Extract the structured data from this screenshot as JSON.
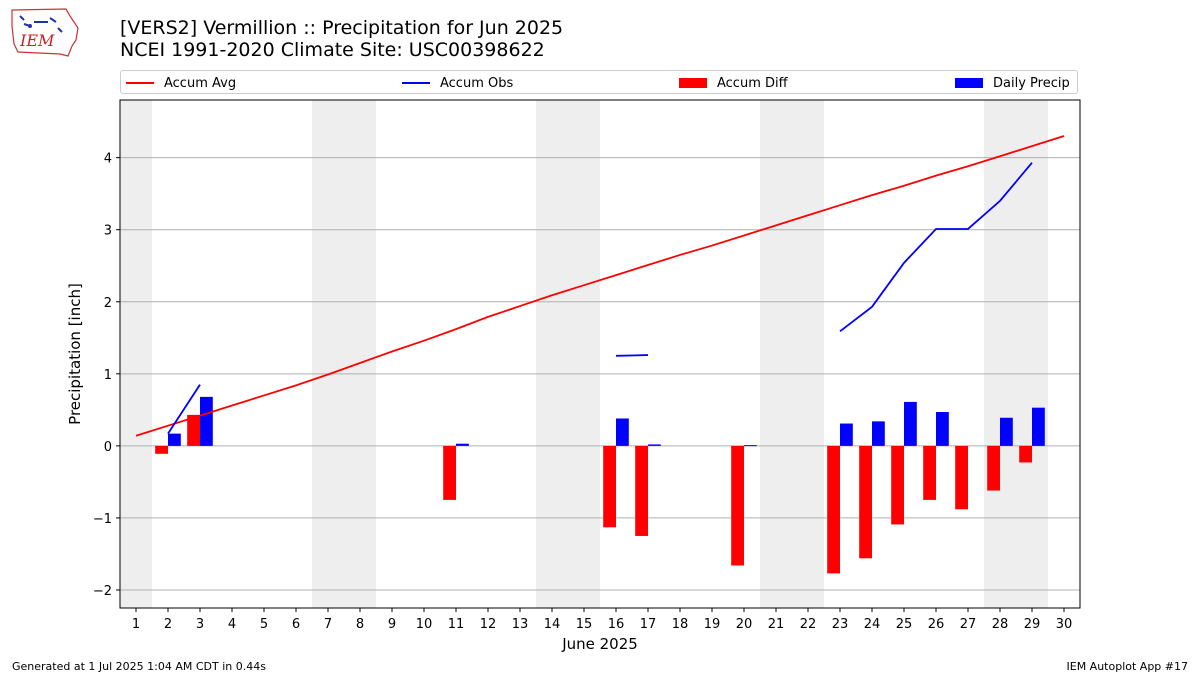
{
  "header": {
    "title_line1": "[VERS2] Vermillion :: Precipitation for Jun 2025",
    "title_line2": "NCEI 1991-2020 Climate Site: USC00398622",
    "logo_text": "IEM"
  },
  "legend": {
    "items": [
      {
        "label": "Accum Avg",
        "kind": "line",
        "color": "#ff0000"
      },
      {
        "label": "Accum Obs",
        "kind": "line",
        "color": "#0000ff"
      },
      {
        "label": "Accum Diff",
        "kind": "bar",
        "color": "#ff0000"
      },
      {
        "label": "Daily Precip",
        "kind": "bar",
        "color": "#0000ff"
      }
    ]
  },
  "footer": {
    "left": "Generated at 1 Jul 2025 1:04 AM CDT in 0.44s",
    "right": "IEM Autoplot App #17"
  },
  "chart_data": {
    "type": "bar",
    "xlabel": "June 2025",
    "ylabel": "Precipitation [inch]",
    "xlim": [
      0.5,
      30.5
    ],
    "ylim": [
      -2.25,
      4.8
    ],
    "yticks": [
      -2,
      -1,
      0,
      1,
      2,
      3,
      4
    ],
    "x": [
      1,
      2,
      3,
      4,
      5,
      6,
      7,
      8,
      9,
      10,
      11,
      12,
      13,
      14,
      15,
      16,
      17,
      18,
      19,
      20,
      21,
      22,
      23,
      24,
      25,
      26,
      27,
      28,
      29,
      30
    ],
    "grid": "horizontal",
    "weekend_shading": [
      [
        0.5,
        1.5
      ],
      [
        6.5,
        8.5
      ],
      [
        13.5,
        15.5
      ],
      [
        20.5,
        22.5
      ],
      [
        27.5,
        29.5
      ]
    ],
    "series": [
      {
        "name": "Accum Avg",
        "kind": "line",
        "color": "#ff0000",
        "points": [
          [
            1,
            0.14
          ],
          [
            2,
            0.28
          ],
          [
            3,
            0.42
          ],
          [
            4,
            0.56
          ],
          [
            5,
            0.7
          ],
          [
            6,
            0.84
          ],
          [
            7,
            0.99
          ],
          [
            8,
            1.15
          ],
          [
            9,
            1.31
          ],
          [
            10,
            1.46
          ],
          [
            11,
            1.62
          ],
          [
            12,
            1.79
          ],
          [
            13,
            1.94
          ],
          [
            14,
            2.09
          ],
          [
            15,
            2.23
          ],
          [
            16,
            2.37
          ],
          [
            17,
            2.51
          ],
          [
            18,
            2.65
          ],
          [
            19,
            2.78
          ],
          [
            20,
            2.92
          ],
          [
            21,
            3.06
          ],
          [
            22,
            3.2
          ],
          [
            23,
            3.34
          ],
          [
            24,
            3.48
          ],
          [
            25,
            3.61
          ],
          [
            26,
            3.75
          ],
          [
            27,
            3.88
          ],
          [
            28,
            4.02
          ],
          [
            29,
            4.16
          ],
          [
            30,
            4.3
          ]
        ]
      },
      {
        "name": "Accum Obs",
        "kind": "line",
        "color": "#0000ff",
        "segments": [
          [
            [
              2,
              0.17
            ],
            [
              3,
              0.85
            ]
          ],
          [
            [
              16,
              1.25
            ],
            [
              17,
              1.26
            ]
          ],
          [
            [
              23,
              1.59
            ],
            [
              24,
              1.93
            ],
            [
              25,
              2.54
            ],
            [
              26,
              3.01
            ],
            [
              27,
              3.01
            ],
            [
              28,
              3.4
            ],
            [
              29,
              3.93
            ]
          ]
        ]
      },
      {
        "name": "Accum Diff",
        "kind": "bar",
        "color": "#ff0000",
        "points": [
          [
            2,
            -0.11
          ],
          [
            3,
            0.43
          ],
          [
            11,
            -0.75
          ],
          [
            16,
            -1.13
          ],
          [
            17,
            -1.25
          ],
          [
            20,
            -1.66
          ],
          [
            23,
            -1.77
          ],
          [
            24,
            -1.56
          ],
          [
            25,
            -1.09
          ],
          [
            26,
            -0.75
          ],
          [
            27,
            -0.88
          ],
          [
            28,
            -0.62
          ],
          [
            29,
            -0.23
          ]
        ]
      },
      {
        "name": "Daily Precip",
        "kind": "bar",
        "color": "#0000ff",
        "points": [
          [
            2,
            0.17
          ],
          [
            3,
            0.68
          ],
          [
            11,
            0.03
          ],
          [
            16,
            0.38
          ],
          [
            17,
            0.02
          ],
          [
            20,
            0.01
          ],
          [
            23,
            0.31
          ],
          [
            24,
            0.34
          ],
          [
            25,
            0.61
          ],
          [
            26,
            0.47
          ],
          [
            28,
            0.39
          ],
          [
            29,
            0.53
          ]
        ]
      }
    ]
  }
}
